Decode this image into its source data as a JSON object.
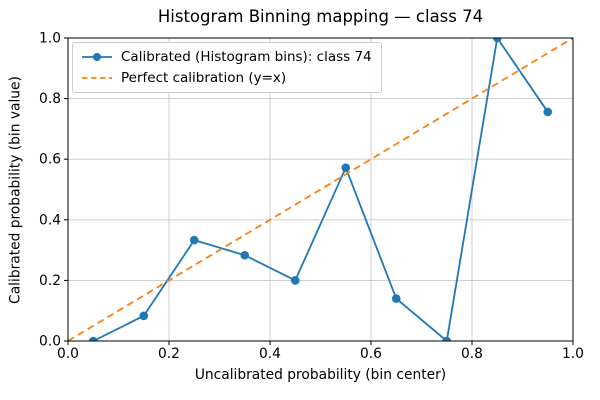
{
  "chart_data": {
    "type": "line",
    "title": "Histogram Binning mapping — class 74",
    "xlabel": "Uncalibrated probability (bin center)",
    "ylabel": "Calibrated probability (bin value)",
    "xlim": [
      0.0,
      1.0
    ],
    "ylim": [
      0.0,
      1.0
    ],
    "xticks": [
      0.0,
      0.2,
      0.4,
      0.6,
      0.8,
      1.0
    ],
    "xtick_labels": [
      "0.0",
      "0.2",
      "0.4",
      "0.6",
      "0.8",
      "1.0"
    ],
    "yticks": [
      0.0,
      0.2,
      0.4,
      0.6,
      0.8,
      1.0
    ],
    "ytick_labels": [
      "0.0",
      "0.2",
      "0.4",
      "0.6",
      "0.8",
      "1.0"
    ],
    "grid": true,
    "grid_color": "#c9c9c9",
    "spine_color": "#000000",
    "legend_position": "upper left",
    "series": [
      {
        "name": "Calibrated (Histogram bins): class 74",
        "color": "#1f77b4",
        "style": "solid",
        "marker": "circle",
        "x": [
          0.05,
          0.15,
          0.25,
          0.35,
          0.45,
          0.55,
          0.65,
          0.75,
          0.85,
          0.95
        ],
        "y": [
          0.0,
          0.083,
          0.333,
          0.283,
          0.2,
          0.572,
          0.14,
          0.0,
          1.0,
          0.756
        ]
      },
      {
        "name": "Perfect calibration (y=x)",
        "color": "#ff7f0e",
        "style": "dashed",
        "marker": "none",
        "x": [
          0.0,
          1.0
        ],
        "y": [
          0.0,
          1.0
        ]
      }
    ]
  }
}
